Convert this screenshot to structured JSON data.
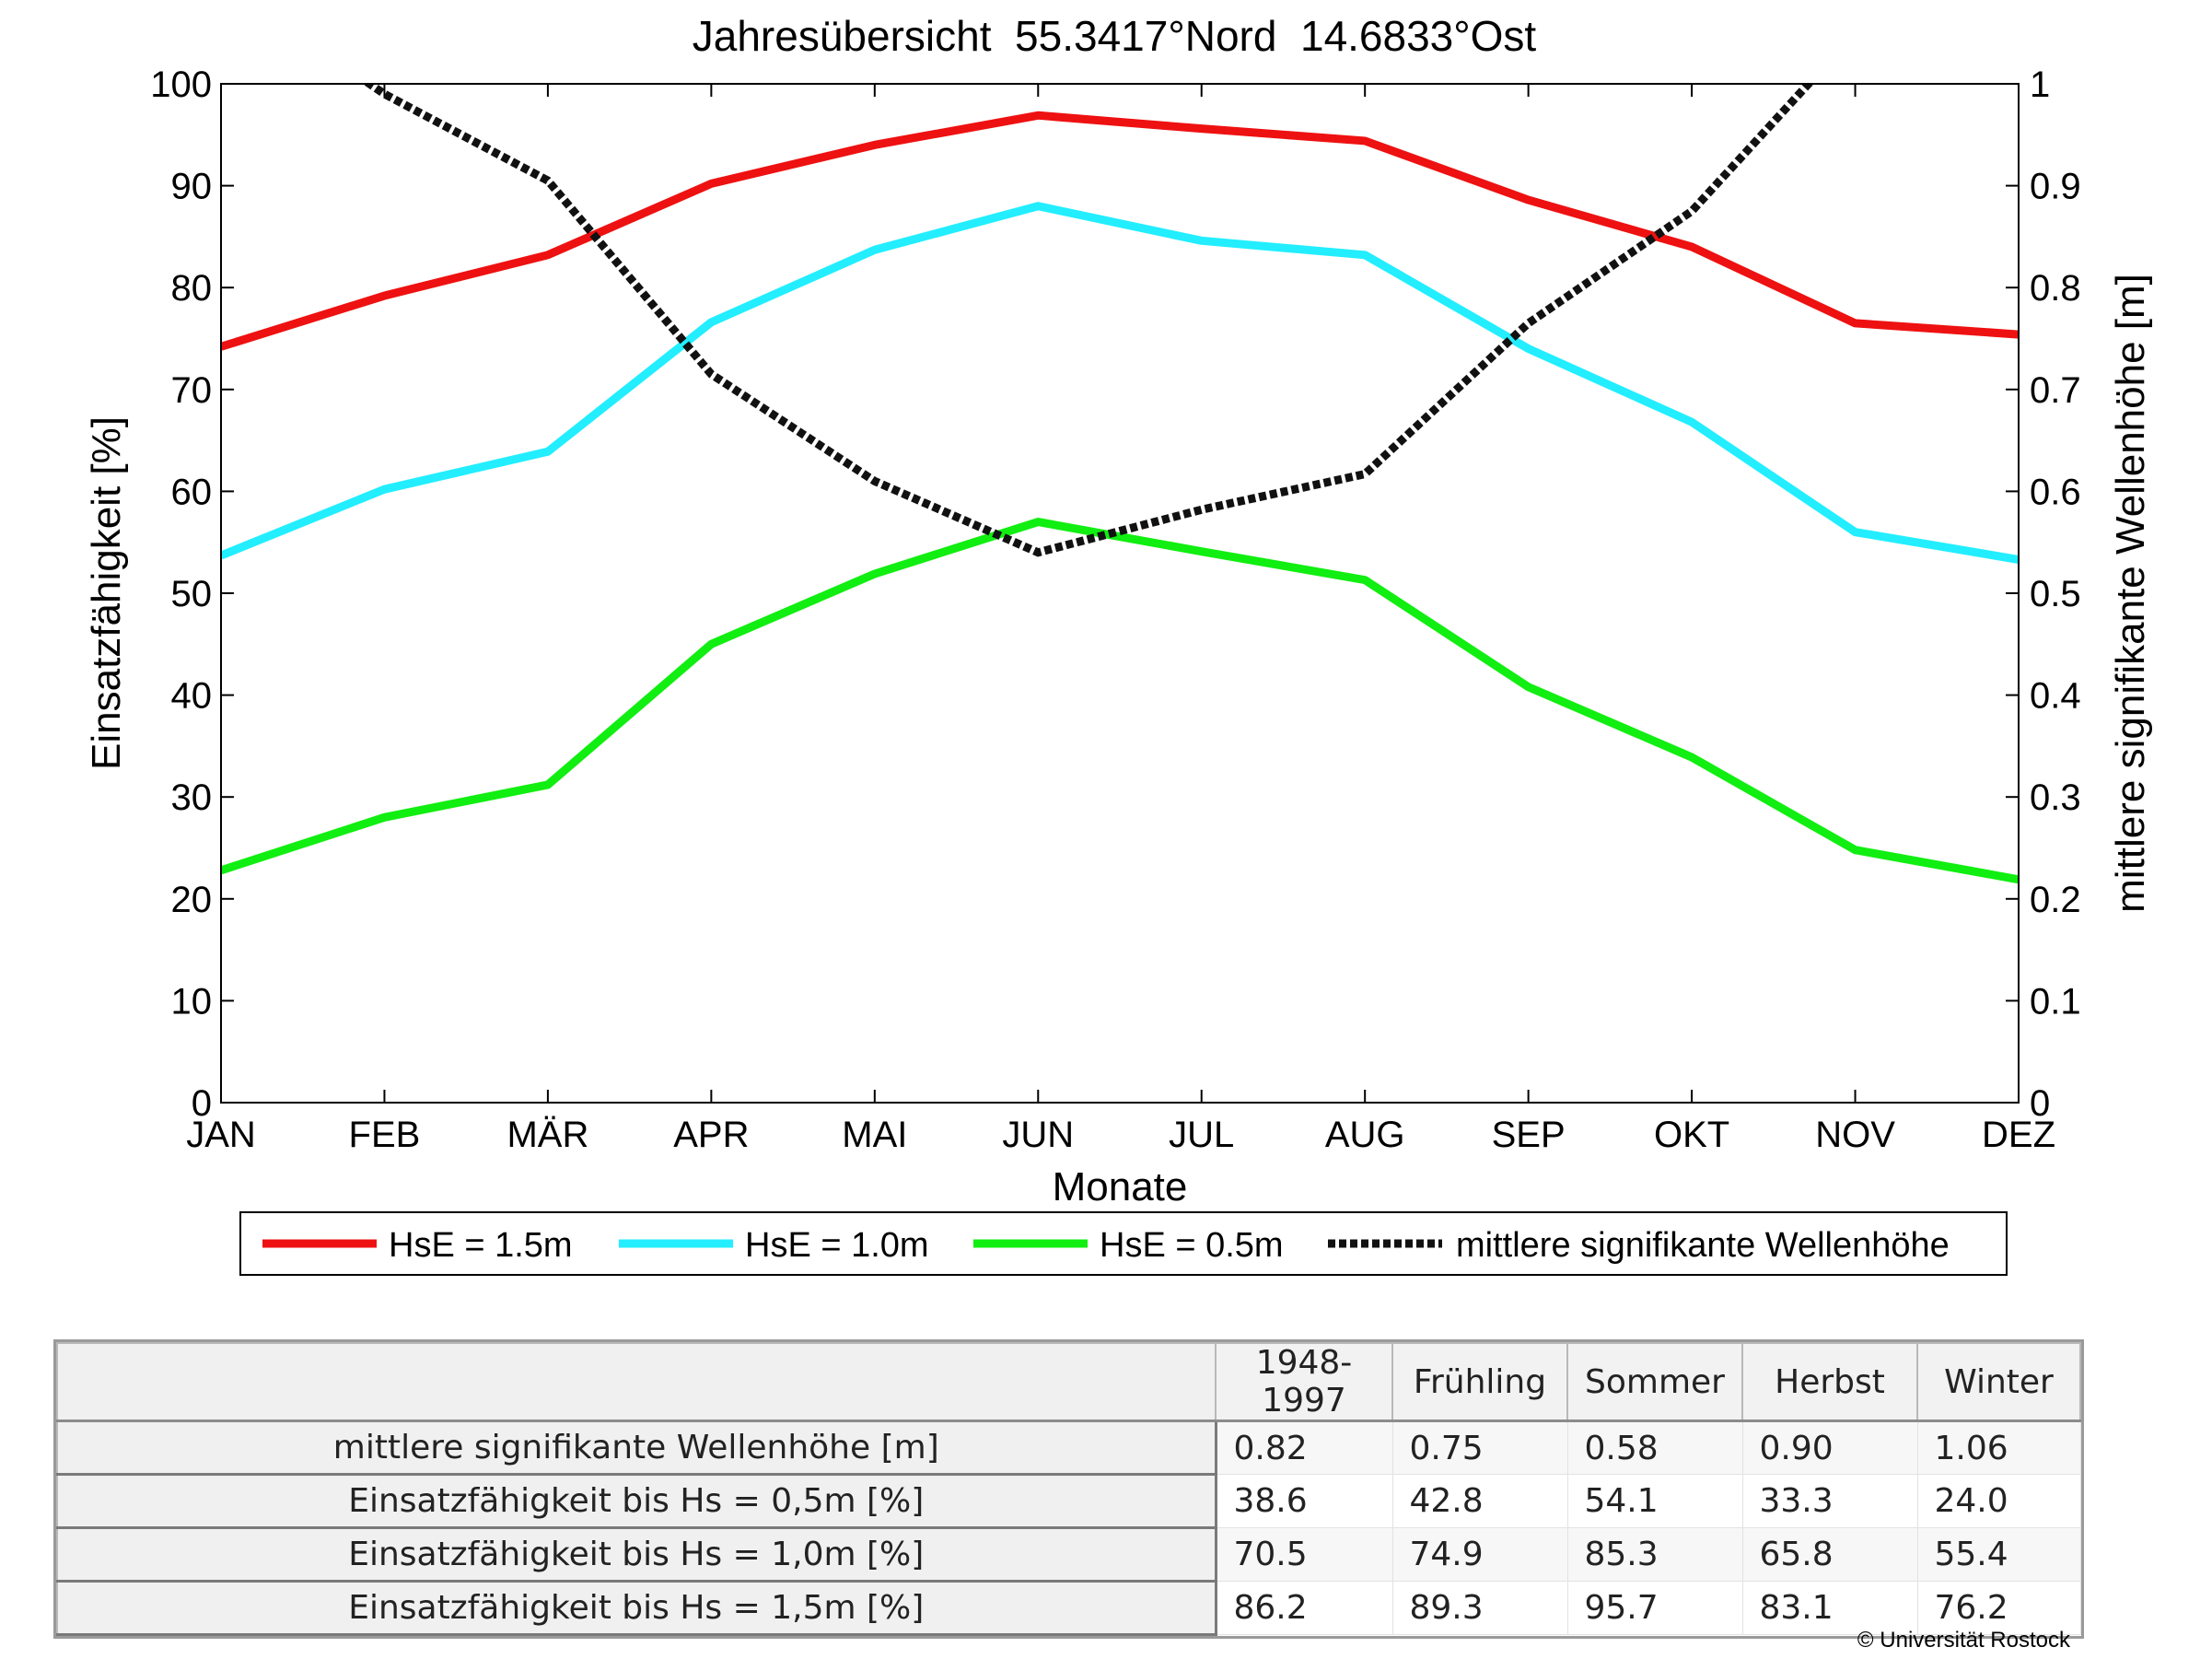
{
  "chart_data": {
    "type": "line",
    "title": "Jahresübersicht  55.3417°Nord  14.6833°Ost",
    "xlabel": "Monate",
    "ylabel": "Einsatzfähigkeit [%]",
    "y2label": "mittlere signifikante Wellenhöhe [m]",
    "categories": [
      "JAN",
      "FEB",
      "MÄR",
      "APR",
      "MAI",
      "JUN",
      "JUL",
      "AUG",
      "SEP",
      "OKT",
      "NOV",
      "DEZ"
    ],
    "ylim": [
      0,
      100
    ],
    "y2lim": [
      0,
      1
    ],
    "yticks": [
      "0",
      "10",
      "20",
      "30",
      "40",
      "50",
      "60",
      "70",
      "80",
      "90",
      "100"
    ],
    "y2ticks": [
      "0",
      "0.1",
      "0.2",
      "0.3",
      "0.4",
      "0.5",
      "0.6",
      "0.7",
      "0.8",
      "0.9",
      "1"
    ],
    "grid": false,
    "legend_position": "bottom",
    "series": [
      {
        "name": "HsE = 1.5m",
        "axis": "left",
        "color": "#ee1111",
        "style": "solid",
        "values": [
          74.2,
          79.2,
          83.2,
          90.2,
          94.0,
          96.9,
          95.6,
          94.4,
          88.6,
          84.0,
          76.5,
          75.4
        ]
      },
      {
        "name": "HsE = 1.0m",
        "axis": "left",
        "color": "#22eeff",
        "style": "solid",
        "values": [
          53.7,
          60.2,
          63.9,
          76.6,
          83.7,
          88.0,
          84.6,
          83.2,
          74.0,
          66.8,
          56.0,
          53.3
        ]
      },
      {
        "name": "HsE = 0.5m",
        "axis": "left",
        "color": "#11ee11",
        "style": "solid",
        "values": [
          22.8,
          28.0,
          31.2,
          45.0,
          51.9,
          57.0,
          54.1,
          51.3,
          40.8,
          33.9,
          24.8,
          21.9
        ]
      },
      {
        "name": "mittlere signifikante Wellenhöhe",
        "axis": "right",
        "color": "#111111",
        "style": "dotted",
        "values": [
          1.1,
          0.99,
          0.905,
          0.715,
          0.61,
          0.54,
          0.582,
          0.617,
          0.765,
          0.875,
          1.05,
          1.1
        ]
      }
    ]
  },
  "table": {
    "columns": [
      "1948-1997",
      "Frühling",
      "Sommer",
      "Herbst",
      "Winter"
    ],
    "rows": [
      {
        "label": "mittlere signifikante Wellenhöhe [m]",
        "values": [
          "0.82",
          "0.75",
          "0.58",
          "0.90",
          "1.06"
        ]
      },
      {
        "label": "Einsatzfähigkeit bis Hs = 0,5m [%]",
        "values": [
          "38.6",
          "42.8",
          "54.1",
          "33.3",
          "24.0"
        ]
      },
      {
        "label": "Einsatzfähigkeit bis Hs = 1,0m [%]",
        "values": [
          "70.5",
          "74.9",
          "85.3",
          "65.8",
          "55.4"
        ]
      },
      {
        "label": "Einsatzfähigkeit bis Hs = 1,5m [%]",
        "values": [
          "86.2",
          "89.3",
          "95.7",
          "83.1",
          "76.2"
        ]
      }
    ]
  },
  "copyright": "© Universität Rostock"
}
